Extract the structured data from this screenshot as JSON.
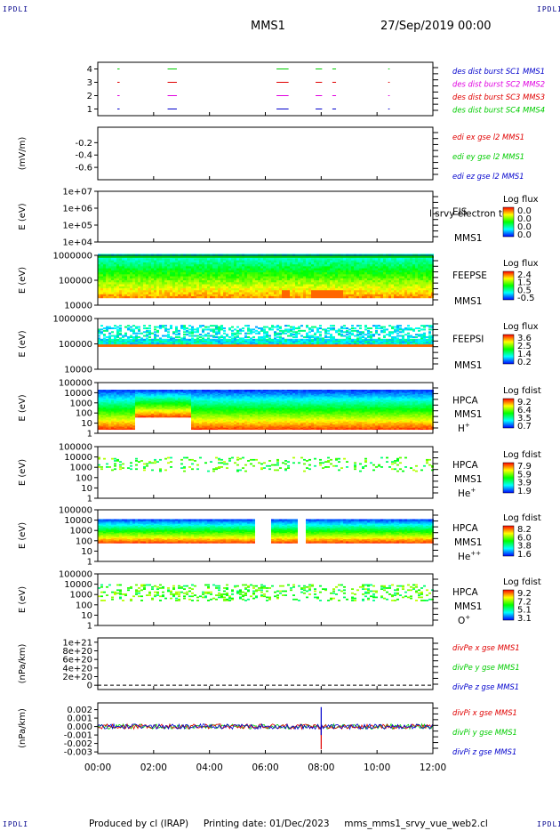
{
  "header": {
    "corner_tl": "IPDLI",
    "corner_tr": "IPDLI",
    "corner_bl": "IPDLI",
    "corner_br": "IPDLI",
    "spacecraft": "MMS1",
    "date": "27/Sep/2019 00:00"
  },
  "footer": {
    "producer": "Produced by cl (IRAP)",
    "printing": "Printing date: 01/Dec/2023",
    "file": "mms_mms1_srvy_vue_web2.cl"
  },
  "colors": {
    "red": "#e00000",
    "green": "#00cc00",
    "blue": "#0000cc",
    "magenta": "#e000e0",
    "darkblue": "#0000a0"
  },
  "chart_data": [
    {
      "type": "line",
      "name": "burst",
      "yticks": [
        "1",
        "2",
        "3",
        "4"
      ],
      "ylim": [
        0.5,
        4.5
      ],
      "legend": [
        {
          "label": "des dist burst SC1 MMS1",
          "color": "blue"
        },
        {
          "label": "des dist burst SC2 MMS2",
          "color": "magenta"
        },
        {
          "label": "des dist burst SC3 MMS3",
          "color": "red"
        },
        {
          "label": "des dist burst SC4 MMS4",
          "color": "green"
        }
      ],
      "intervals_hours": [
        [
          0.7,
          0.75
        ],
        [
          2.5,
          2.8
        ],
        [
          6.4,
          6.8
        ],
        [
          7.8,
          8.0
        ],
        [
          8.4,
          8.5
        ],
        [
          10.4,
          10.42
        ]
      ]
    },
    {
      "type": "line",
      "name": "edi",
      "ylabel": "(mV/m)",
      "yticks": [
        "-0.2",
        "-0.4",
        "-0.6"
      ],
      "ytick_values": [
        -0.2,
        -0.4,
        -0.6
      ],
      "ylim": [
        -0.8,
        0.05
      ],
      "legend": [
        {
          "label": "edi ex gse l2 MMS1",
          "color": "red"
        },
        {
          "label": "edi ey gse l2 MMS1",
          "color": "green"
        },
        {
          "label": "edi ez gse l2 MMS1",
          "color": "blue"
        }
      ]
    },
    {
      "type": "heatmap",
      "name": "eis",
      "ylabel": "E (eV)",
      "yticks": [
        "1e+07",
        "1e+06",
        "1e+05",
        "1e+04"
      ],
      "ytick_log": [
        7,
        6,
        5,
        4
      ],
      "ylim_log": [
        4,
        7
      ],
      "instrument": [
        "EIS",
        "MMS1"
      ],
      "extra_label": "l srvy electron tc",
      "cbar_title": "Log flux",
      "cbar_ticks": [
        "0.0",
        "0.0",
        "0.0",
        "0.0"
      ],
      "empty": true
    },
    {
      "type": "heatmap",
      "name": "feepse",
      "ylabel": "E (eV)",
      "yticks": [
        "1000000",
        "100000",
        "10000"
      ],
      "ytick_log": [
        6,
        5,
        4
      ],
      "ylim_log": [
        4,
        6
      ],
      "instrument": [
        "FEEPSE",
        "MMS1"
      ],
      "cbar_title": "Log flux",
      "cbar_ticks": [
        "2.4",
        "1.5",
        "0.5",
        "-0.5"
      ]
    },
    {
      "type": "heatmap",
      "name": "feepsi",
      "ylabel": "E (eV)",
      "yticks": [
        "1000000",
        "100000",
        "10000"
      ],
      "ytick_log": [
        6,
        5,
        4
      ],
      "ylim_log": [
        4,
        6
      ],
      "instrument": [
        "FEEPSI",
        "MMS1"
      ],
      "cbar_title": "Log flux",
      "cbar_ticks": [
        "3.6",
        "2.5",
        "1.4",
        "0.2"
      ]
    },
    {
      "type": "heatmap",
      "name": "hpca-h",
      "ylabel": "E (eV)",
      "yticks": [
        "100000",
        "10000",
        "1000",
        "100",
        "10",
        "1"
      ],
      "ytick_log": [
        5,
        4,
        3,
        2,
        1,
        0
      ],
      "ylim_log": [
        0,
        5
      ],
      "instrument": [
        "HPCA",
        "MMS1"
      ],
      "species": "H",
      "species_sup": "+",
      "cbar_title": "Log fdist",
      "cbar_ticks": [
        "9.2",
        "6.4",
        "3.5",
        "0.7"
      ]
    },
    {
      "type": "heatmap",
      "name": "hpca-he1",
      "ylabel": "E (eV)",
      "yticks": [
        "100000",
        "10000",
        "1000",
        "100",
        "10",
        "1"
      ],
      "ytick_log": [
        5,
        4,
        3,
        2,
        1,
        0
      ],
      "ylim_log": [
        0,
        5
      ],
      "instrument": [
        "HPCA",
        "MMS1"
      ],
      "species": "He",
      "species_sup": "+",
      "cbar_title": "Log fdist",
      "cbar_ticks": [
        "7.9",
        "5.9",
        "3.9",
        "1.9"
      ]
    },
    {
      "type": "heatmap",
      "name": "hpca-he2",
      "ylabel": "E (eV)",
      "yticks": [
        "100000",
        "10000",
        "1000",
        "100",
        "10",
        "1"
      ],
      "ytick_log": [
        5,
        4,
        3,
        2,
        1,
        0
      ],
      "ylim_log": [
        0,
        5
      ],
      "instrument": [
        "HPCA",
        "MMS1"
      ],
      "species": "He",
      "species_sup": "++",
      "cbar_title": "Log fdist",
      "cbar_ticks": [
        "8.2",
        "6.0",
        "3.8",
        "1.6"
      ]
    },
    {
      "type": "heatmap",
      "name": "hpca-o",
      "ylabel": "E (eV)",
      "yticks": [
        "100000",
        "10000",
        "1000",
        "100",
        "10",
        "1"
      ],
      "ytick_log": [
        5,
        4,
        3,
        2,
        1,
        0
      ],
      "ylim_log": [
        0,
        5
      ],
      "instrument": [
        "HPCA",
        "MMS1"
      ],
      "species": "O",
      "species_sup": "+",
      "cbar_title": "Log fdist",
      "cbar_ticks": [
        "9.2",
        "7.2",
        "5.1",
        "3.1"
      ]
    },
    {
      "type": "line",
      "name": "divpe",
      "ylabel": "(nPa/km)",
      "yticks": [
        "1e+21",
        "8e+20",
        "6e+20",
        "4e+20",
        "2e+20",
        "0"
      ],
      "ytick_values": [
        1e+21,
        8e+20,
        6e+20,
        4e+20,
        2e+20,
        0
      ],
      "ylim": [
        -1e+20,
        1.1e+21
      ],
      "legend": [
        {
          "label": "divPe x gse MMS1",
          "color": "red"
        },
        {
          "label": "divPe y gse MMS1",
          "color": "green"
        },
        {
          "label": "divPe z gse MMS1",
          "color": "blue"
        }
      ]
    },
    {
      "type": "line",
      "name": "divpi",
      "ylabel": "(nPa/km)",
      "yticks": [
        "0.002",
        "0.001",
        "0.000",
        "-0.001",
        "-0.002",
        "-0.003"
      ],
      "ytick_values": [
        0.002,
        0.001,
        0.0,
        -0.001,
        -0.002,
        -0.003
      ],
      "ylim": [
        -0.0032,
        0.0028
      ],
      "legend": [
        {
          "label": "divPi x gse MMS1",
          "color": "red"
        },
        {
          "label": "divPi y gse MMS1",
          "color": "green"
        },
        {
          "label": "divPi z gse MMS1",
          "color": "blue"
        }
      ]
    }
  ],
  "time_axis": {
    "labels": [
      "00:00",
      "02:00",
      "04:00",
      "06:00",
      "08:00",
      "10:00",
      "12:00"
    ],
    "hours": [
      0,
      2,
      4,
      6,
      8,
      10,
      12
    ]
  }
}
